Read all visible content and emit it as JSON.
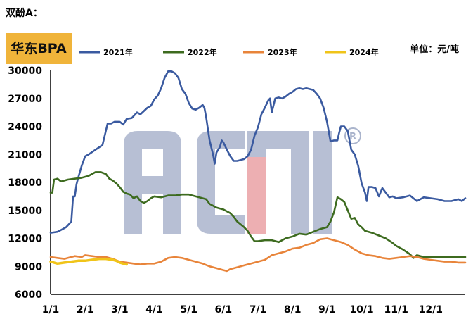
{
  "heading": "双酚A：",
  "chart_data": {
    "type": "line",
    "title": "华东BPA",
    "unit": "单位：元/吨",
    "ylim": [
      6000,
      30000
    ],
    "yticks": [
      6000,
      9000,
      12000,
      15000,
      18000,
      21000,
      24000,
      27000,
      30000
    ],
    "xlim": [
      0,
      12
    ],
    "xticks": [
      {
        "label": "1/1",
        "x": 0
      },
      {
        "label": "2/1",
        "x": 1
      },
      {
        "label": "3/1",
        "x": 2
      },
      {
        "label": "4/1",
        "x": 3
      },
      {
        "label": "5/1",
        "x": 4
      },
      {
        "label": "6/1",
        "x": 5
      },
      {
        "label": "7/1",
        "x": 6
      },
      {
        "label": "8/1",
        "x": 7
      },
      {
        "label": "9/1",
        "x": 8
      },
      {
        "label": "10/1",
        "x": 9
      },
      {
        "label": "11/1",
        "x": 10
      },
      {
        "label": "12/1",
        "x": 11
      }
    ],
    "grid": false,
    "legend_position": "top",
    "watermark": "ACMI",
    "series": [
      {
        "name": "2021年",
        "color": "#3a5aa0",
        "points": [
          [
            0,
            12600
          ],
          [
            0.2,
            12700
          ],
          [
            0.3,
            12900
          ],
          [
            0.45,
            13200
          ],
          [
            0.6,
            13800
          ],
          [
            0.65,
            16500
          ],
          [
            0.7,
            16500
          ],
          [
            0.75,
            17800
          ],
          [
            0.8,
            18500
          ],
          [
            0.9,
            19800
          ],
          [
            1.0,
            20800
          ],
          [
            1.1,
            21000
          ],
          [
            1.3,
            21500
          ],
          [
            1.5,
            22000
          ],
          [
            1.65,
            24300
          ],
          [
            1.75,
            24300
          ],
          [
            1.85,
            24500
          ],
          [
            2.0,
            24500
          ],
          [
            2.1,
            24200
          ],
          [
            2.2,
            24800
          ],
          [
            2.35,
            24900
          ],
          [
            2.5,
            25500
          ],
          [
            2.6,
            25300
          ],
          [
            2.8,
            26000
          ],
          [
            2.9,
            26200
          ],
          [
            3.0,
            26900
          ],
          [
            3.1,
            27300
          ],
          [
            3.2,
            28100
          ],
          [
            3.3,
            29200
          ],
          [
            3.4,
            29900
          ],
          [
            3.5,
            29900
          ],
          [
            3.6,
            29700
          ],
          [
            3.7,
            29200
          ],
          [
            3.8,
            28000
          ],
          [
            3.9,
            27500
          ],
          [
            4.0,
            26500
          ],
          [
            4.1,
            25900
          ],
          [
            4.2,
            25800
          ],
          [
            4.3,
            26000
          ],
          [
            4.4,
            26300
          ],
          [
            4.45,
            26000
          ],
          [
            4.5,
            25000
          ],
          [
            4.6,
            22500
          ],
          [
            4.7,
            21000
          ],
          [
            4.75,
            20000
          ],
          [
            4.8,
            21200
          ],
          [
            4.9,
            21800
          ],
          [
            4.95,
            22500
          ],
          [
            5.0,
            22300
          ],
          [
            5.1,
            21500
          ],
          [
            5.2,
            20800
          ],
          [
            5.3,
            20300
          ],
          [
            5.4,
            20300
          ],
          [
            5.5,
            20400
          ],
          [
            5.6,
            20500
          ],
          [
            5.7,
            20800
          ],
          [
            5.8,
            21500
          ],
          [
            5.9,
            23000
          ],
          [
            6.0,
            23900
          ],
          [
            6.1,
            25300
          ],
          [
            6.2,
            26000
          ],
          [
            6.3,
            26800
          ],
          [
            6.35,
            27000
          ],
          [
            6.4,
            25500
          ],
          [
            6.5,
            27000
          ],
          [
            6.6,
            27100
          ],
          [
            6.7,
            27000
          ],
          [
            6.8,
            27200
          ],
          [
            6.9,
            27500
          ],
          [
            7.0,
            27700
          ],
          [
            7.1,
            28000
          ],
          [
            7.2,
            28100
          ],
          [
            7.3,
            28000
          ],
          [
            7.4,
            28100
          ],
          [
            7.5,
            28000
          ],
          [
            7.6,
            27900
          ],
          [
            7.7,
            27500
          ],
          [
            7.8,
            27000
          ],
          [
            7.9,
            26000
          ],
          [
            8.0,
            24500
          ],
          [
            8.1,
            22400
          ],
          [
            8.2,
            22500
          ],
          [
            8.3,
            22500
          ],
          [
            8.35,
            23300
          ],
          [
            8.4,
            24000
          ],
          [
            8.5,
            24000
          ],
          [
            8.6,
            23500
          ],
          [
            8.7,
            21500
          ],
          [
            8.8,
            21000
          ],
          [
            8.9,
            19800
          ],
          [
            9.0,
            17900
          ],
          [
            9.1,
            16900
          ],
          [
            9.15,
            16000
          ],
          [
            9.2,
            17500
          ],
          [
            9.3,
            17500
          ],
          [
            9.4,
            17400
          ],
          [
            9.5,
            16500
          ],
          [
            9.6,
            17400
          ],
          [
            9.7,
            16900
          ],
          [
            9.8,
            16400
          ],
          [
            9.9,
            16500
          ],
          [
            10.0,
            16300
          ],
          [
            10.2,
            16400
          ],
          [
            10.4,
            16600
          ],
          [
            10.6,
            16000
          ],
          [
            10.8,
            16400
          ],
          [
            11.0,
            16300
          ],
          [
            11.2,
            16200
          ],
          [
            11.4,
            16000
          ],
          [
            11.6,
            16000
          ],
          [
            11.8,
            16200
          ],
          [
            11.9,
            16000
          ],
          [
            12.0,
            16300
          ]
        ]
      },
      {
        "name": "2022年",
        "color": "#3d6b1f",
        "points": [
          [
            0,
            16900
          ],
          [
            0.05,
            16900
          ],
          [
            0.1,
            18300
          ],
          [
            0.2,
            18400
          ],
          [
            0.3,
            18100
          ],
          [
            0.4,
            18200
          ],
          [
            0.5,
            18300
          ],
          [
            0.7,
            18400
          ],
          [
            0.9,
            18500
          ],
          [
            1.1,
            18700
          ],
          [
            1.3,
            19100
          ],
          [
            1.45,
            19100
          ],
          [
            1.6,
            18900
          ],
          [
            1.7,
            18400
          ],
          [
            1.8,
            18200
          ],
          [
            1.9,
            17900
          ],
          [
            2.0,
            17500
          ],
          [
            2.1,
            17000
          ],
          [
            2.2,
            16800
          ],
          [
            2.3,
            16700
          ],
          [
            2.4,
            16300
          ],
          [
            2.5,
            16500
          ],
          [
            2.6,
            16000
          ],
          [
            2.7,
            15800
          ],
          [
            2.8,
            16000
          ],
          [
            2.9,
            16300
          ],
          [
            3.0,
            16500
          ],
          [
            3.2,
            16400
          ],
          [
            3.4,
            16600
          ],
          [
            3.6,
            16600
          ],
          [
            3.8,
            16700
          ],
          [
            4.0,
            16700
          ],
          [
            4.2,
            16500
          ],
          [
            4.4,
            16300
          ],
          [
            4.5,
            16200
          ],
          [
            4.6,
            15700
          ],
          [
            4.7,
            15500
          ],
          [
            4.8,
            15300
          ],
          [
            4.9,
            15200
          ],
          [
            5.0,
            15100
          ],
          [
            5.1,
            14900
          ],
          [
            5.2,
            14700
          ],
          [
            5.3,
            14300
          ],
          [
            5.4,
            13800
          ],
          [
            5.5,
            13500
          ],
          [
            5.6,
            13200
          ],
          [
            5.7,
            12800
          ],
          [
            5.8,
            12200
          ],
          [
            5.9,
            11700
          ],
          [
            6.0,
            11700
          ],
          [
            6.2,
            11800
          ],
          [
            6.4,
            11800
          ],
          [
            6.6,
            11600
          ],
          [
            6.8,
            12000
          ],
          [
            7.0,
            12200
          ],
          [
            7.2,
            12500
          ],
          [
            7.4,
            12400
          ],
          [
            7.6,
            12700
          ],
          [
            7.8,
            13000
          ],
          [
            8.0,
            13200
          ],
          [
            8.1,
            13800
          ],
          [
            8.2,
            14800
          ],
          [
            8.3,
            16400
          ],
          [
            8.4,
            16200
          ],
          [
            8.5,
            15900
          ],
          [
            8.6,
            15000
          ],
          [
            8.7,
            14100
          ],
          [
            8.8,
            14200
          ],
          [
            8.9,
            13500
          ],
          [
            9.0,
            13200
          ],
          [
            9.1,
            12800
          ],
          [
            9.3,
            12600
          ],
          [
            9.5,
            12300
          ],
          [
            9.7,
            12000
          ],
          [
            9.9,
            11500
          ],
          [
            10.0,
            11200
          ],
          [
            10.2,
            10800
          ],
          [
            10.4,
            10300
          ],
          [
            10.5,
            9900
          ],
          [
            10.6,
            10200
          ],
          [
            10.8,
            10000
          ],
          [
            11.0,
            10000
          ],
          [
            11.2,
            10000
          ],
          [
            11.4,
            10000
          ],
          [
            11.6,
            10000
          ],
          [
            11.8,
            10000
          ],
          [
            12.0,
            10000
          ]
        ]
      },
      {
        "name": "2023年",
        "color": "#e8843a",
        "points": [
          [
            0,
            10000
          ],
          [
            0.2,
            9900
          ],
          [
            0.4,
            9800
          ],
          [
            0.5,
            9900
          ],
          [
            0.7,
            10100
          ],
          [
            0.9,
            10000
          ],
          [
            1.0,
            10200
          ],
          [
            1.2,
            10100
          ],
          [
            1.4,
            10000
          ],
          [
            1.6,
            10000
          ],
          [
            1.8,
            9800
          ],
          [
            2.0,
            9500
          ],
          [
            2.2,
            9400
          ],
          [
            2.4,
            9300
          ],
          [
            2.6,
            9200
          ],
          [
            2.8,
            9300
          ],
          [
            3.0,
            9300
          ],
          [
            3.2,
            9500
          ],
          [
            3.4,
            9900
          ],
          [
            3.6,
            10000
          ],
          [
            3.8,
            9900
          ],
          [
            4.0,
            9700
          ],
          [
            4.2,
            9500
          ],
          [
            4.4,
            9300
          ],
          [
            4.6,
            9000
          ],
          [
            4.8,
            8800
          ],
          [
            5.0,
            8600
          ],
          [
            5.1,
            8500
          ],
          [
            5.2,
            8700
          ],
          [
            5.4,
            8900
          ],
          [
            5.6,
            9100
          ],
          [
            5.8,
            9300
          ],
          [
            6.0,
            9500
          ],
          [
            6.2,
            9700
          ],
          [
            6.4,
            10200
          ],
          [
            6.6,
            10400
          ],
          [
            6.8,
            10600
          ],
          [
            7.0,
            10900
          ],
          [
            7.2,
            11000
          ],
          [
            7.4,
            11300
          ],
          [
            7.6,
            11500
          ],
          [
            7.8,
            11900
          ],
          [
            8.0,
            12000
          ],
          [
            8.2,
            11800
          ],
          [
            8.4,
            11600
          ],
          [
            8.6,
            11300
          ],
          [
            8.8,
            10800
          ],
          [
            9.0,
            10400
          ],
          [
            9.2,
            10200
          ],
          [
            9.4,
            10100
          ],
          [
            9.6,
            9900
          ],
          [
            9.8,
            9800
          ],
          [
            10.0,
            9900
          ],
          [
            10.2,
            10000
          ],
          [
            10.4,
            10100
          ],
          [
            10.6,
            10000
          ],
          [
            10.8,
            9800
          ],
          [
            11.0,
            9700
          ],
          [
            11.2,
            9600
          ],
          [
            11.4,
            9500
          ],
          [
            11.6,
            9500
          ],
          [
            11.8,
            9400
          ],
          [
            12.0,
            9400
          ]
        ]
      },
      {
        "name": "2024年",
        "color": "#f0c419",
        "points": [
          [
            0,
            9500
          ],
          [
            0.2,
            9300
          ],
          [
            0.4,
            9400
          ],
          [
            0.6,
            9500
          ],
          [
            0.8,
            9600
          ],
          [
            1.0,
            9600
          ],
          [
            1.2,
            9700
          ],
          [
            1.4,
            9800
          ],
          [
            1.6,
            9800
          ],
          [
            1.8,
            9700
          ],
          [
            1.9,
            9600
          ],
          [
            2.0,
            9400
          ],
          [
            2.1,
            9300
          ],
          [
            2.2,
            9200
          ]
        ]
      }
    ]
  }
}
